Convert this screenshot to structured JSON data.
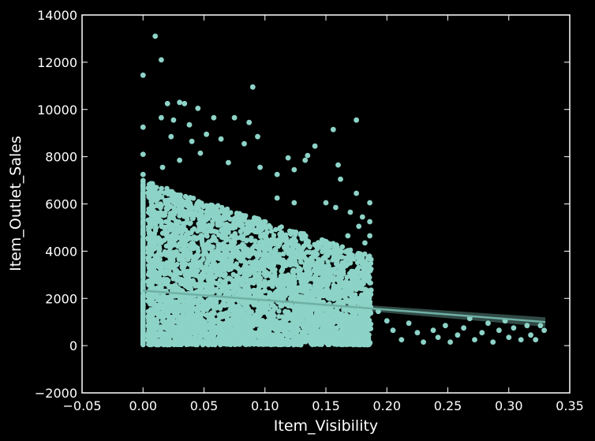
{
  "chart_data": {
    "type": "scatter",
    "title": "",
    "xlabel": "Item_Visibility",
    "ylabel": "Item_Outlet_Sales",
    "xlim": [
      -0.05,
      0.35
    ],
    "ylim": [
      -2000,
      14000
    ],
    "xticks": [
      -0.05,
      0.0,
      0.05,
      0.1,
      0.15,
      0.2,
      0.25,
      0.3,
      0.35
    ],
    "xtick_labels": [
      "−0.05",
      "0.00",
      "0.05",
      "0.10",
      "0.15",
      "0.20",
      "0.25",
      "0.30",
      "0.35"
    ],
    "yticks": [
      -2000,
      0,
      2000,
      4000,
      6000,
      8000,
      10000,
      12000,
      14000
    ],
    "ytick_labels": [
      "−2000",
      "0",
      "2000",
      "4000",
      "6000",
      "8000",
      "10000",
      "12000",
      "14000"
    ],
    "grid": false,
    "legend": "none",
    "colors": {
      "background": "#000000",
      "points": "#8dd3c7",
      "frame": "#ffffff"
    },
    "series": [
      {
        "values": [
          [
            0.0,
            11450
          ],
          [
            0.0,
            9250
          ],
          [
            0.0,
            8100
          ],
          [
            0.0,
            7250
          ],
          [
            0.0,
            6800
          ],
          [
            0.0,
            6200
          ],
          [
            0.0,
            5500
          ],
          [
            0.0,
            4700
          ],
          [
            0.0,
            3900
          ],
          [
            0.0,
            3100
          ],
          [
            0.0,
            2400
          ],
          [
            0.0,
            1700
          ],
          [
            0.0,
            900
          ],
          [
            0.0,
            300
          ],
          [
            0.01,
            13100
          ],
          [
            0.015,
            12100
          ],
          [
            0.09,
            10950
          ],
          [
            0.02,
            10250
          ],
          [
            0.03,
            10300
          ],
          [
            0.034,
            10250
          ],
          [
            0.045,
            10050
          ],
          [
            0.015,
            9650
          ],
          [
            0.025,
            9550
          ],
          [
            0.038,
            9350
          ],
          [
            0.058,
            9650
          ],
          [
            0.075,
            9650
          ],
          [
            0.087,
            9450
          ],
          [
            0.156,
            9150
          ],
          [
            0.175,
            9550
          ],
          [
            0.023,
            8850
          ],
          [
            0.04,
            8650
          ],
          [
            0.052,
            8950
          ],
          [
            0.064,
            8750
          ],
          [
            0.083,
            8550
          ],
          [
            0.094,
            8850
          ],
          [
            0.141,
            8450
          ],
          [
            0.135,
            8050
          ],
          [
            0.119,
            7950
          ],
          [
            0.016,
            7550
          ],
          [
            0.03,
            7850
          ],
          [
            0.047,
            8150
          ],
          [
            0.07,
            7750
          ],
          [
            0.096,
            7550
          ],
          [
            0.11,
            7250
          ],
          [
            0.124,
            7450
          ],
          [
            0.133,
            7850
          ],
          [
            0.16,
            7650
          ],
          [
            0.162,
            7050
          ],
          [
            0.175,
            6450
          ],
          [
            0.186,
            6050
          ],
          [
            0.11,
            6250
          ],
          [
            0.124,
            6050
          ],
          [
            0.15,
            6050
          ],
          [
            0.158,
            5850
          ],
          [
            0.17,
            5650
          ],
          [
            0.18,
            5450
          ],
          [
            0.186,
            5250
          ],
          [
            0.177,
            5050
          ],
          [
            0.168,
            4650
          ],
          [
            0.186,
            4650
          ],
          [
            0.182,
            4350
          ],
          [
            0.176,
            3850
          ],
          [
            0.187,
            3650
          ],
          [
            0.186,
            3250
          ],
          [
            0.185,
            2750
          ],
          [
            0.187,
            2350
          ],
          [
            0.186,
            1850
          ],
          [
            0.193,
            1450
          ],
          [
            0.2,
            1050
          ],
          [
            0.205,
            650
          ],
          [
            0.212,
            250
          ],
          [
            0.218,
            950
          ],
          [
            0.225,
            550
          ],
          [
            0.23,
            150
          ],
          [
            0.238,
            650
          ],
          [
            0.242,
            350
          ],
          [
            0.248,
            850
          ],
          [
            0.252,
            150
          ],
          [
            0.258,
            450
          ],
          [
            0.263,
            750
          ],
          [
            0.268,
            1150
          ],
          [
            0.272,
            250
          ],
          [
            0.278,
            550
          ],
          [
            0.283,
            950
          ],
          [
            0.287,
            150
          ],
          [
            0.292,
            650
          ],
          [
            0.297,
            1050
          ],
          [
            0.3,
            350
          ],
          [
            0.304,
            750
          ],
          [
            0.31,
            250
          ],
          [
            0.315,
            850
          ],
          [
            0.318,
            450
          ],
          [
            0.322,
            250
          ],
          [
            0.326,
            850
          ],
          [
            0.329,
            650
          ]
        ]
      }
    ],
    "cloud": {
      "description": "dense overlapping points",
      "count": 6500,
      "x_range": [
        0.0,
        0.187
      ],
      "y_range": [
        33,
        7000
      ]
    },
    "regression": {
      "x_range": [
        0.0,
        0.33
      ],
      "y_start": 2330,
      "y_end": 1000,
      "band": 90
    }
  }
}
